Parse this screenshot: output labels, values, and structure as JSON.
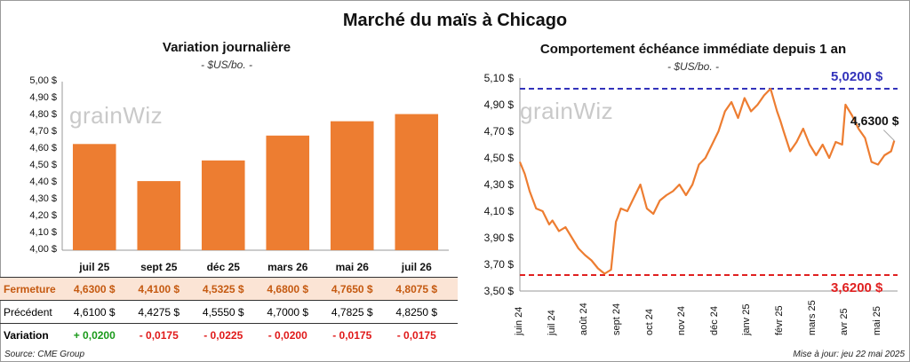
{
  "main_title": "Marché du maïs à Chicago",
  "watermark": "grainWiz",
  "left": {
    "title": "Variation journalière",
    "unit": "- $US/bo. -",
    "y_ticks": [
      "5,00 $",
      "4,90 $",
      "4,80 $",
      "4,70 $",
      "4,60 $",
      "4,50 $",
      "4,40 $",
      "4,30 $",
      "4,20 $",
      "4,10 $",
      "4,00 $"
    ],
    "table": {
      "fermeture_label": "Fermeture",
      "fermeture": [
        "4,6300  $",
        "4,4100  $",
        "4,5325  $",
        "4,6800  $",
        "4,7650  $",
        "4,8075  $"
      ],
      "precedent_label": "Précédent",
      "precedent": [
        "4,6100  $",
        "4,4275  $",
        "4,5550  $",
        "4,7000  $",
        "4,7825  $",
        "4,8250  $"
      ],
      "variation_label": "Variation",
      "variation": [
        "+ 0,0200",
        "- 0,0175",
        "- 0,0225",
        "- 0,0200",
        "- 0,0175",
        "- 0,0175"
      ]
    }
  },
  "right": {
    "title": "Comportement échéance immédiate depuis 1 an",
    "unit": "- $US/bo. -",
    "y_ticks": [
      "5,10 $",
      "4,90 $",
      "4,70 $",
      "4,50 $",
      "4,30 $",
      "4,10 $",
      "3,90 $",
      "3,70 $",
      "3,50 $"
    ],
    "max_label": "5,0200 $",
    "min_label": "3,6200 $",
    "last_label": "4,6300 $",
    "month_labels": [
      "juin 24",
      "juil 24",
      "août 24",
      "sept 24",
      "oct 24",
      "nov 24",
      "déc 24",
      "janv 25",
      "févr 25",
      "mars 25",
      "avr 25",
      "mai 25"
    ]
  },
  "footer": {
    "source": "Source: CME Group",
    "updated": "Mise à jour: jeu 22 mai 2025"
  },
  "colors": {
    "bar": "#ed7d31",
    "line": "#ed7d31",
    "max_line": "#3333bb",
    "min_line": "#e02020",
    "fermeture_bg": "#fbe4d5",
    "positive": "#1a9a1a",
    "negative": "#e01a1a"
  },
  "chart_data": [
    {
      "type": "bar",
      "title": "Variation journalière",
      "ylabel": "$US/bo.",
      "categories": [
        "juil 25",
        "sept 25",
        "déc 25",
        "mars 26",
        "mai 26",
        "juil 26"
      ],
      "values": [
        4.63,
        4.41,
        4.5325,
        4.68,
        4.765,
        4.8075
      ],
      "ylim": [
        4.0,
        5.0
      ]
    },
    {
      "type": "line",
      "title": "Comportement échéance immédiate depuis 1 an",
      "ylabel": "$US/bo.",
      "ylim": [
        3.5,
        5.1
      ],
      "reference_lines": {
        "max": 5.02,
        "min": 3.62
      },
      "series": [
        {
          "x_month_index": [
            0,
            0.15,
            0.3,
            0.5,
            0.7,
            0.9,
            1.0,
            1.2,
            1.4,
            1.6,
            1.8,
            2.0,
            2.2,
            2.4,
            2.6,
            2.8,
            2.95,
            3.0,
            3.1,
            3.3,
            3.5,
            3.7,
            3.9,
            4.1,
            4.3,
            4.5,
            4.7,
            4.9,
            5.1,
            5.3,
            5.5,
            5.7,
            5.9,
            6.1,
            6.3,
            6.5,
            6.7,
            6.9,
            7.1,
            7.3,
            7.5,
            7.7,
            7.9,
            8.0,
            8.1,
            8.3,
            8.5,
            8.7,
            8.9,
            9.1,
            9.3,
            9.5,
            9.7,
            9.9,
            10.0,
            10.2,
            10.4,
            10.6,
            10.8,
            11.0,
            11.2,
            11.4,
            11.5
          ],
          "y": [
            4.47,
            4.38,
            4.25,
            4.12,
            4.1,
            4.0,
            4.03,
            3.95,
            3.98,
            3.9,
            3.82,
            3.77,
            3.73,
            3.67,
            3.63,
            3.66,
            4.02,
            4.05,
            4.12,
            4.1,
            4.2,
            4.3,
            4.12,
            4.08,
            4.18,
            4.22,
            4.25,
            4.3,
            4.22,
            4.3,
            4.45,
            4.5,
            4.6,
            4.7,
            4.85,
            4.92,
            4.8,
            4.95,
            4.85,
            4.9,
            4.97,
            5.02,
            4.85,
            4.78,
            4.7,
            4.55,
            4.62,
            4.72,
            4.6,
            4.52,
            4.6,
            4.5,
            4.62,
            4.6,
            4.9,
            4.82,
            4.72,
            4.65,
            4.47,
            4.45,
            4.52,
            4.55,
            4.63
          ]
        }
      ]
    }
  ]
}
